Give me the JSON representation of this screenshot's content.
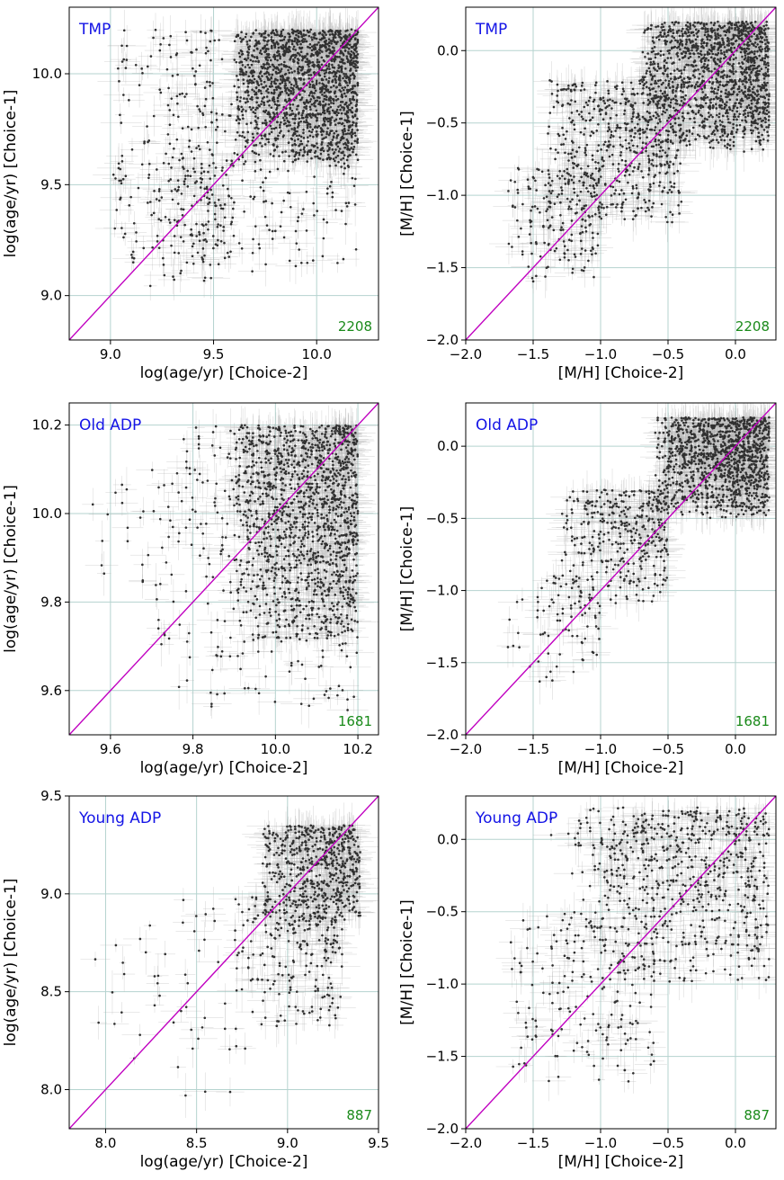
{
  "colors": {
    "panel_label": "#1414e6",
    "count": "#1a8a1a",
    "identity_line": "#c000c0",
    "points": "#303030",
    "errorbars": "#b0b0b0",
    "grid": "#b5d3cf"
  },
  "chart_data": [
    {
      "type": "scatter",
      "label": "TMP",
      "count": "2208",
      "xlabel": "log(age/yr) [Choice-2]",
      "ylabel": "log(age/yr) [Choice-1]",
      "xlim": [
        8.8,
        10.3
      ],
      "ylim": [
        8.8,
        10.3
      ],
      "xticks": [
        9.0,
        9.5,
        10.0
      ],
      "xtick_labels": [
        "9.0",
        "9.5",
        "10.0"
      ],
      "yticks": [
        9.0,
        9.5,
        10.0
      ],
      "ytick_labels": [
        "9.0",
        "9.5",
        "10.0"
      ],
      "identity_line": true,
      "points_approx": {
        "clusters": [
          {
            "x": [
              9.6,
              10.2
            ],
            "y": [
              9.6,
              10.2
            ],
            "n": 1500
          },
          {
            "x": [
              9.0,
              10.2
            ],
            "y": [
              9.1,
              10.2
            ],
            "n": 500
          },
          {
            "x": [
              9.0,
              9.6
            ],
            "y": [
              9.0,
              9.6
            ],
            "n": 140
          }
        ]
      }
    },
    {
      "type": "scatter",
      "label": "TMP",
      "count": "2208",
      "xlabel": "[M/H] [Choice-2]",
      "ylabel": "[M/H] [Choice-1]",
      "xlim": [
        -2.0,
        0.3
      ],
      "ylim": [
        -2.0,
        0.3
      ],
      "xticks": [
        -2.0,
        -1.5,
        -1.0,
        -0.5,
        0.0
      ],
      "xtick_labels": [
        "−2.0",
        "−1.5",
        "−1.0",
        "−0.5",
        "0.0"
      ],
      "yticks": [
        -2.0,
        -1.5,
        -1.0,
        -0.5,
        0.0
      ],
      "ytick_labels": [
        "−2.0",
        "−1.5",
        "−1.0",
        "−0.5",
        "0.0"
      ],
      "identity_line": true,
      "points_approx": {
        "clusters": [
          {
            "x": [
              -0.7,
              0.25
            ],
            "y": [
              -0.7,
              0.2
            ],
            "n": 1400
          },
          {
            "x": [
              -1.4,
              -0.4
            ],
            "y": [
              -1.2,
              -0.2
            ],
            "n": 550
          },
          {
            "x": [
              -1.7,
              -1.0
            ],
            "y": [
              -1.6,
              -0.8
            ],
            "n": 200
          }
        ]
      }
    },
    {
      "type": "scatter",
      "label": "Old ADP",
      "count": "1681",
      "xlabel": "log(age/yr) [Choice-2]",
      "ylabel": "log(age/yr) [Choice-1]",
      "xlim": [
        9.5,
        10.25
      ],
      "ylim": [
        9.5,
        10.25
      ],
      "xticks": [
        9.6,
        9.8,
        10.0,
        10.2
      ],
      "xtick_labels": [
        "9.6",
        "9.8",
        "10.0",
        "10.2"
      ],
      "yticks": [
        9.6,
        9.8,
        10.0,
        10.2
      ],
      "ytick_labels": [
        "9.6",
        "9.8",
        "10.0",
        "10.2"
      ],
      "identity_line": true,
      "points_approx": {
        "clusters": [
          {
            "x": [
              9.9,
              10.2
            ],
            "y": [
              9.7,
              10.2
            ],
            "n": 1200
          },
          {
            "x": [
              9.7,
              10.2
            ],
            "y": [
              9.55,
              10.2
            ],
            "n": 400
          },
          {
            "x": [
              9.55,
              9.8
            ],
            "y": [
              9.8,
              10.1
            ],
            "n": 30
          }
        ]
      }
    },
    {
      "type": "scatter",
      "label": "Old ADP",
      "count": "1681",
      "xlabel": "[M/H] [Choice-2]",
      "ylabel": "[M/H] [Choice-1]",
      "xlim": [
        -2.0,
        0.3
      ],
      "ylim": [
        -2.0,
        0.3
      ],
      "xticks": [
        -2.0,
        -1.5,
        -1.0,
        -0.5,
        0.0
      ],
      "xtick_labels": [
        "−2.0",
        "−1.5",
        "−1.0",
        "−0.5",
        "0.0"
      ],
      "yticks": [
        -2.0,
        -1.5,
        -1.0,
        -0.5,
        0.0
      ],
      "ytick_labels": [
        "−2.0",
        "−1.5",
        "−1.0",
        "−0.5",
        "0.0"
      ],
      "identity_line": true,
      "points_approx": {
        "clusters": [
          {
            "x": [
              -0.6,
              0.25
            ],
            "y": [
              -0.5,
              0.2
            ],
            "n": 1200
          },
          {
            "x": [
              -1.3,
              -0.5
            ],
            "y": [
              -1.1,
              -0.3
            ],
            "n": 350
          },
          {
            "x": [
              -1.7,
              -1.0
            ],
            "y": [
              -1.7,
              -0.9
            ],
            "n": 90
          }
        ]
      }
    },
    {
      "type": "scatter",
      "label": "Young ADP",
      "count": "887",
      "xlabel": "log(age/yr) [Choice-2]",
      "ylabel": "log(age/yr) [Choice-1]",
      "xlim": [
        7.8,
        9.5
      ],
      "ylim": [
        7.8,
        9.5
      ],
      "xticks": [
        8.0,
        8.5,
        9.0,
        9.5
      ],
      "xtick_labels": [
        "8.0",
        "8.5",
        "9.0",
        "9.5"
      ],
      "yticks": [
        8.0,
        8.5,
        9.0,
        9.5
      ],
      "ytick_labels": [
        "8.0",
        "8.5",
        "9.0",
        "9.5"
      ],
      "identity_line": true,
      "points_approx": {
        "clusters": [
          {
            "x": [
              8.85,
              9.4
            ],
            "y": [
              8.85,
              9.35
            ],
            "n": 550
          },
          {
            "x": [
              8.7,
              9.3
            ],
            "y": [
              8.3,
              9.0
            ],
            "n": 250
          },
          {
            "x": [
              7.9,
              8.8
            ],
            "y": [
              7.85,
              9.0
            ],
            "n": 50
          }
        ]
      }
    },
    {
      "type": "scatter",
      "label": "Young ADP",
      "count": "887",
      "xlabel": "[M/H] [Choice-2]",
      "ylabel": "[M/H] [Choice-1]",
      "xlim": [
        -2.0,
        0.3
      ],
      "ylim": [
        -2.0,
        0.3
      ],
      "xticks": [
        -2.0,
        -1.5,
        -1.0,
        -0.5,
        0.0
      ],
      "xtick_labels": [
        "−2.0",
        "−1.5",
        "−1.0",
        "−0.5",
        "0.0"
      ],
      "yticks": [
        -2.0,
        -1.5,
        -1.0,
        -0.5,
        0.0
      ],
      "ytick_labels": [
        "−2.0",
        "−1.5",
        "−1.0",
        "−0.5",
        "0.0"
      ],
      "identity_line": true,
      "points_approx": {
        "clusters": [
          {
            "x": [
              -1.2,
              0.25
            ],
            "y": [
              -1.0,
              0.2
            ],
            "n": 600
          },
          {
            "x": [
              -1.7,
              -0.6
            ],
            "y": [
              -1.7,
              -0.5
            ],
            "n": 200
          },
          {
            "x": [
              -1.5,
              0.1
            ],
            "y": [
              -0.3,
              0.22
            ],
            "n": 80
          }
        ]
      }
    }
  ]
}
